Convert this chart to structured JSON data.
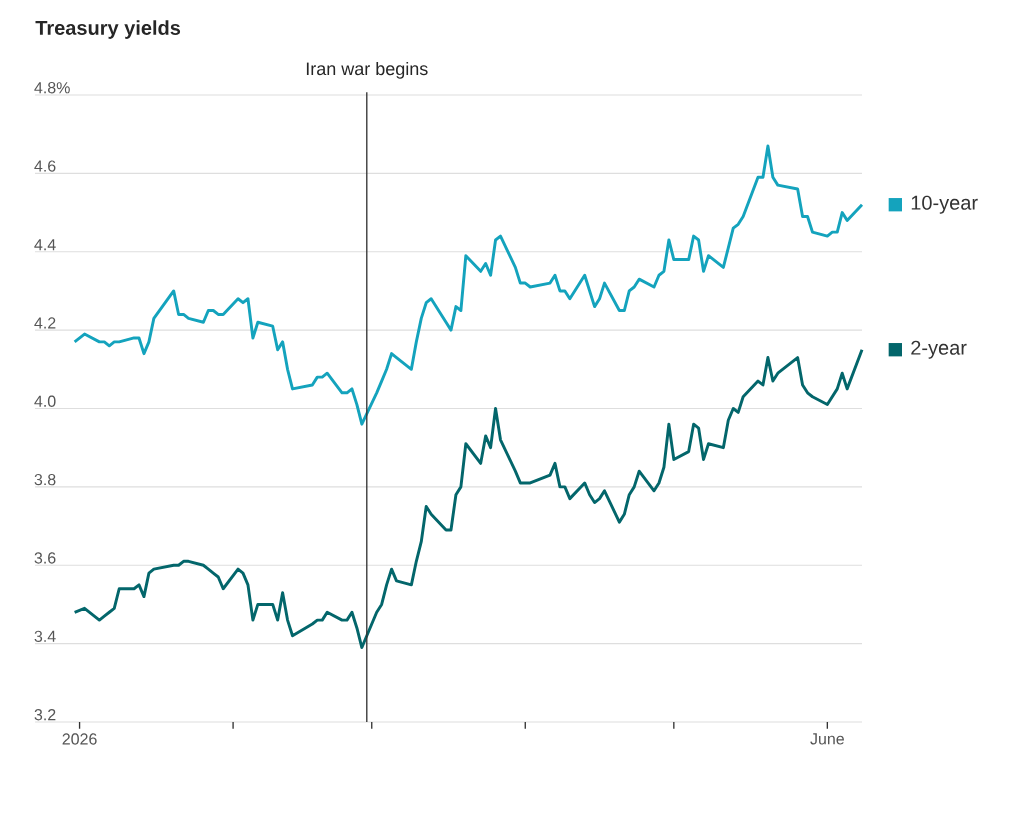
{
  "chart_data": {
    "type": "line",
    "title": "Treasury yields",
    "x": [
      "2025-12-31",
      "2026-01-02",
      "2026-01-05",
      "2026-01-06",
      "2026-01-07",
      "2026-01-08",
      "2026-01-09",
      "2026-01-12",
      "2026-01-13",
      "2026-01-14",
      "2026-01-15",
      "2026-01-16",
      "2026-01-20",
      "2026-01-21",
      "2026-01-22",
      "2026-01-23",
      "2026-01-26",
      "2026-01-27",
      "2026-01-28",
      "2026-01-29",
      "2026-01-30",
      "2026-02-02",
      "2026-02-03",
      "2026-02-04",
      "2026-02-05",
      "2026-02-06",
      "2026-02-09",
      "2026-02-10",
      "2026-02-11",
      "2026-02-12",
      "2026-02-13",
      "2026-02-17",
      "2026-02-18",
      "2026-02-19",
      "2026-02-20",
      "2026-02-23",
      "2026-02-24",
      "2026-02-25",
      "2026-02-26",
      "2026-02-27",
      "2026-03-02",
      "2026-03-03",
      "2026-03-04",
      "2026-03-05",
      "2026-03-06",
      "2026-03-09",
      "2026-03-10",
      "2026-03-11",
      "2026-03-12",
      "2026-03-13",
      "2026-03-16",
      "2026-03-17",
      "2026-03-18",
      "2026-03-19",
      "2026-03-20",
      "2026-03-23",
      "2026-03-24",
      "2026-03-25",
      "2026-03-26",
      "2026-03-27",
      "2026-03-30",
      "2026-03-31",
      "2026-04-01",
      "2026-04-02",
      "2026-04-06",
      "2026-04-07",
      "2026-04-08",
      "2026-04-09",
      "2026-04-10",
      "2026-04-13",
      "2026-04-14",
      "2026-04-15",
      "2026-04-16",
      "2026-04-17",
      "2026-04-20",
      "2026-04-21",
      "2026-04-22",
      "2026-04-23",
      "2026-04-24",
      "2026-04-27",
      "2026-04-28",
      "2026-04-29",
      "2026-04-30",
      "2026-05-01",
      "2026-05-04",
      "2026-05-05",
      "2026-05-06",
      "2026-05-07",
      "2026-05-08",
      "2026-05-11",
      "2026-05-12",
      "2026-05-13",
      "2026-05-14",
      "2026-05-15",
      "2026-05-18",
      "2026-05-19",
      "2026-05-20",
      "2026-05-21",
      "2026-05-22",
      "2026-05-26",
      "2026-05-27",
      "2026-05-28",
      "2026-05-29",
      "2026-06-01",
      "2026-06-02",
      "2026-06-03",
      "2026-06-04",
      "2026-06-05",
      "2026-06-08"
    ],
    "xlim": [
      "2025-12-23",
      "2026-06-08"
    ],
    "xticks": [
      {
        "value": "2026-01-01",
        "label": "2026"
      },
      {
        "value": "2026-02-01",
        "label": null
      },
      {
        "value": "2026-03-01",
        "label": null
      },
      {
        "value": "2026-04-01",
        "label": null
      },
      {
        "value": "2026-05-01",
        "label": null
      },
      {
        "value": "2026-06-01",
        "label": "June"
      }
    ],
    "ylim": [
      3.2,
      4.8
    ],
    "yticks": [
      3.2,
      3.4,
      3.6,
      3.8,
      {
        "value": 4,
        "label": "4.0"
      },
      4.2,
      4.4,
      4.6,
      {
        "value": 4.8,
        "label": "4.8%"
      }
    ],
    "grid": "y",
    "legend": "right",
    "ref_lines": [
      {
        "axis": "x",
        "value": "2026-02-28",
        "label": "Iran war begins",
        "color": "#333333"
      }
    ],
    "series": [
      {
        "name": "10-year",
        "color": "#14a3bd",
        "values": [
          4.17,
          4.19,
          4.17,
          4.17,
          4.16,
          4.17,
          4.17,
          4.18,
          4.18,
          4.14,
          4.17,
          4.23,
          4.3,
          4.24,
          4.24,
          4.23,
          4.22,
          4.25,
          4.25,
          4.24,
          4.24,
          4.28,
          4.27,
          4.28,
          4.18,
          4.22,
          4.21,
          4.15,
          4.17,
          4.1,
          4.05,
          4.06,
          4.08,
          4.08,
          4.09,
          4.04,
          4.04,
          4.05,
          4.01,
          3.96,
          4.04,
          4.07,
          4.1,
          4.14,
          4.13,
          4.1,
          4.17,
          4.23,
          4.27,
          4.28,
          4.22,
          4.2,
          4.26,
          4.25,
          4.39,
          4.35,
          4.37,
          4.34,
          4.43,
          4.44,
          4.36,
          4.32,
          4.32,
          4.31,
          4.32,
          4.34,
          4.3,
          4.3,
          4.28,
          4.34,
          4.3,
          4.26,
          4.28,
          4.32,
          4.25,
          4.25,
          4.3,
          4.31,
          4.33,
          4.31,
          4.34,
          4.35,
          4.43,
          4.38,
          4.38,
          4.44,
          4.43,
          4.35,
          4.39,
          4.36,
          4.41,
          4.46,
          4.47,
          4.49,
          4.59,
          4.59,
          4.67,
          4.59,
          4.57,
          4.56,
          4.49,
          4.49,
          4.45,
          4.44,
          4.45,
          4.45,
          4.5,
          4.48,
          4.52
        ]
      },
      {
        "name": "2-year",
        "color": "#03666b",
        "values": [
          3.48,
          3.49,
          3.46,
          3.47,
          3.48,
          3.49,
          3.54,
          3.54,
          3.55,
          3.52,
          3.58,
          3.59,
          3.6,
          3.6,
          3.61,
          3.61,
          3.6,
          3.59,
          3.58,
          3.57,
          3.54,
          3.59,
          3.58,
          3.55,
          3.46,
          3.5,
          3.5,
          3.46,
          3.53,
          3.46,
          3.42,
          3.45,
          3.46,
          3.46,
          3.48,
          3.46,
          3.46,
          3.48,
          3.44,
          3.39,
          3.48,
          3.5,
          3.55,
          3.59,
          3.56,
          3.55,
          3.61,
          3.66,
          3.75,
          3.73,
          3.69,
          3.69,
          3.78,
          3.8,
          3.91,
          3.86,
          3.93,
          3.9,
          4.0,
          3.92,
          3.84,
          3.81,
          3.81,
          3.81,
          3.83,
          3.86,
          3.8,
          3.8,
          3.77,
          3.81,
          3.78,
          3.76,
          3.77,
          3.79,
          3.71,
          3.73,
          3.78,
          3.8,
          3.84,
          3.79,
          3.81,
          3.85,
          3.96,
          3.87,
          3.89,
          3.96,
          3.95,
          3.87,
          3.91,
          3.9,
          3.97,
          4.0,
          3.99,
          4.03,
          4.07,
          4.06,
          4.13,
          4.07,
          4.09,
          4.13,
          4.06,
          4.04,
          4.03,
          4.01,
          4.03,
          4.05,
          4.09,
          4.05,
          4.15
        ]
      }
    ]
  }
}
